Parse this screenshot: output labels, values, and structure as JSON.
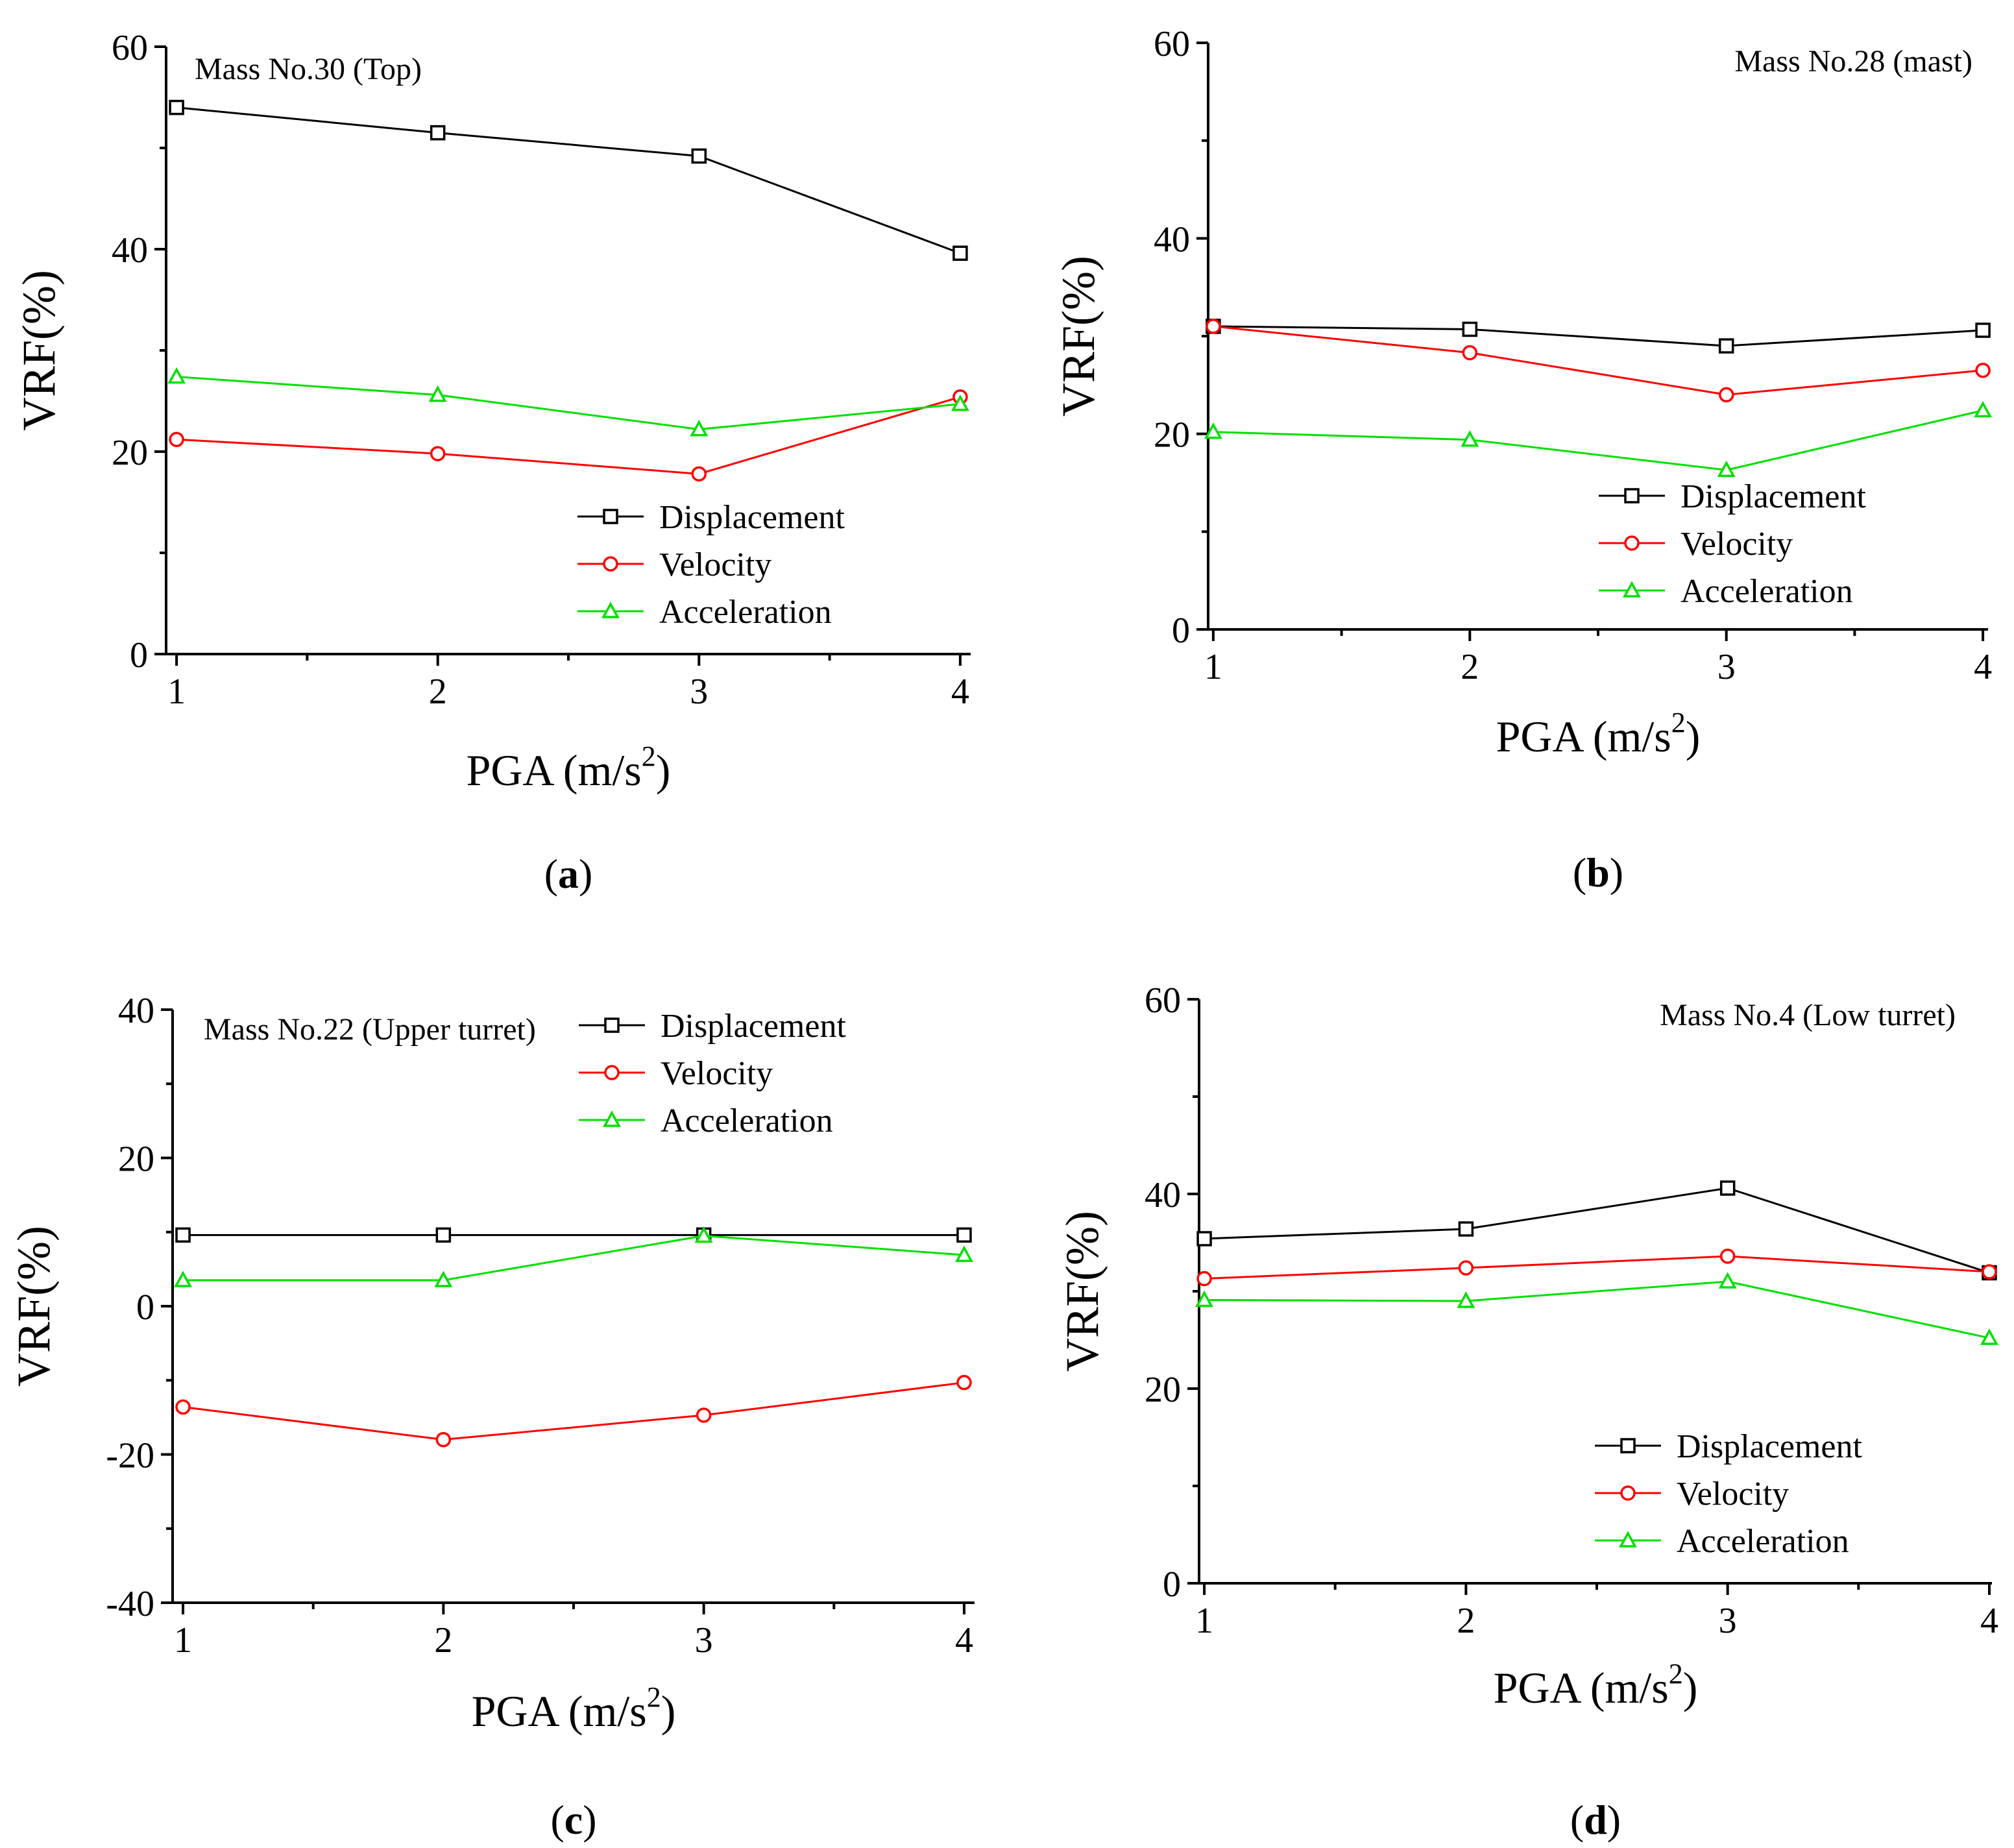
{
  "chart_data": [
    {
      "id": "a",
      "type": "line",
      "title": "Mass No.30 (Top)",
      "caption": "a",
      "xlabel": "PGA (m/s",
      "xlabel_sup": "2",
      "xlabel_close": ")",
      "ylabel": "VRF(%)",
      "x": [
        1,
        2,
        3,
        4
      ],
      "xlim": [
        0.96,
        4.04
      ],
      "ylim": [
        0,
        60
      ],
      "yticks": [
        "0",
        "20",
        "40",
        "60"
      ],
      "xticks": [
        "1",
        "2",
        "3",
        "4"
      ],
      "legend_position": "lower-right",
      "series": [
        {
          "name": "Displacement",
          "color": "#000000",
          "marker": "square",
          "values": [
            54,
            51.5,
            49.2,
            39.6
          ]
        },
        {
          "name": "Velocity",
          "color": "#ff0000",
          "marker": "circle",
          "values": [
            21.2,
            19.8,
            17.8,
            25.4
          ]
        },
        {
          "name": "Acceleration",
          "color": "#00e000",
          "marker": "triangle",
          "values": [
            27.4,
            25.6,
            22.2,
            24.7
          ]
        }
      ]
    },
    {
      "id": "b",
      "type": "line",
      "title": "Mass No.28 (mast)",
      "caption": "b",
      "xlabel": "PGA (m/s",
      "xlabel_sup": "2",
      "xlabel_close": ")",
      "ylabel": "VRF(%)",
      "x": [
        1,
        2,
        3,
        4
      ],
      "xlim": [
        0.98,
        4.02
      ],
      "ylim": [
        0,
        60
      ],
      "yticks": [
        "0",
        "20",
        "40",
        "60"
      ],
      "xticks": [
        "1",
        "2",
        "3",
        "4"
      ],
      "legend_position": "lower-right",
      "series": [
        {
          "name": "Displacement",
          "color": "#000000",
          "marker": "square",
          "values": [
            31,
            30.7,
            29,
            30.6
          ]
        },
        {
          "name": "Velocity",
          "color": "#ff0000",
          "marker": "circle",
          "values": [
            31,
            28.3,
            24,
            26.5
          ]
        },
        {
          "name": "Acceleration",
          "color": "#00e000",
          "marker": "triangle",
          "values": [
            20.2,
            19.4,
            16.3,
            22.4
          ]
        }
      ]
    },
    {
      "id": "c",
      "type": "line",
      "title": "Mass No.22 (Upper turret)",
      "caption": "c",
      "xlabel": "PGA (m/s",
      "xlabel_sup": "2",
      "xlabel_close": ")",
      "ylabel": "VRF(%)",
      "x": [
        1,
        2,
        3,
        4
      ],
      "xlim": [
        0.96,
        4.04
      ],
      "ylim": [
        -40,
        40
      ],
      "yticks": [
        "-40",
        "-20",
        "0",
        "20",
        "40"
      ],
      "xticks": [
        "1",
        "2",
        "3",
        "4"
      ],
      "legend_position": "upper-right",
      "series": [
        {
          "name": "Displacement",
          "color": "#000000",
          "marker": "square",
          "values": [
            9.6,
            9.6,
            9.6,
            9.6
          ]
        },
        {
          "name": "Velocity",
          "color": "#ff0000",
          "marker": "circle",
          "values": [
            -13.6,
            -18,
            -14.7,
            -10.3
          ]
        },
        {
          "name": "Acceleration",
          "color": "#00e000",
          "marker": "triangle",
          "values": [
            3.5,
            3.5,
            9.5,
            6.9
          ]
        }
      ]
    },
    {
      "id": "d",
      "type": "line",
      "title": "Mass No.4 (Low turret)",
      "caption": "d",
      "xlabel": "PGA (m/s",
      "xlabel_sup": "2",
      "xlabel_close": ")",
      "ylabel": "VRF(%)",
      "x": [
        1,
        2,
        3,
        4
      ],
      "xlim": [
        0.98,
        4.01
      ],
      "ylim": [
        0,
        60
      ],
      "yticks": [
        "0",
        "20",
        "40",
        "60"
      ],
      "xticks": [
        "1",
        "2",
        "3",
        "4"
      ],
      "legend_position": "lower-right",
      "series": [
        {
          "name": "Displacement",
          "color": "#000000",
          "marker": "square",
          "values": [
            35.4,
            36.4,
            40.6,
            31.9
          ]
        },
        {
          "name": "Velocity",
          "color": "#ff0000",
          "marker": "circle",
          "values": [
            31.3,
            32.4,
            33.6,
            32
          ]
        },
        {
          "name": "Acceleration",
          "color": "#00e000",
          "marker": "triangle",
          "values": [
            29.1,
            29,
            31,
            25.2
          ]
        }
      ]
    }
  ]
}
